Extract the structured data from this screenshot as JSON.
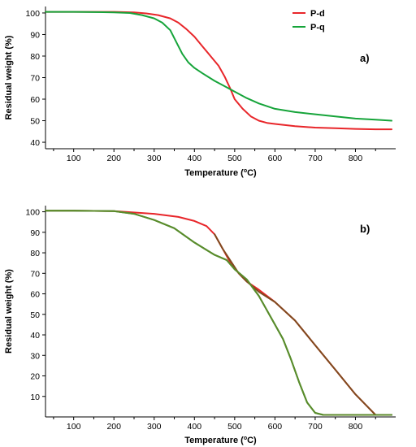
{
  "chart_data": [
    {
      "type": "line",
      "panel_label": "a)",
      "xlabel_prefix": "Temperature (",
      "xlabel_unit": "o",
      "xlabel_suffix": "C)",
      "ylabel": "Residual weight (%)",
      "xlim": [
        30,
        900
      ],
      "ylim": [
        37,
        103
      ],
      "xticks": [
        "100",
        "200",
        "300",
        "400",
        "500",
        "600",
        "700",
        "800"
      ],
      "yticks": [
        "40",
        "50",
        "60",
        "70",
        "80",
        "90",
        "100"
      ],
      "legend": {
        "placement": "top-center"
      },
      "grid": false,
      "series": [
        {
          "name": "P-d",
          "color": "#e8262a",
          "x": [
            30,
            100,
            200,
            250,
            280,
            310,
            340,
            360,
            380,
            400,
            420,
            440,
            460,
            475,
            490,
            500,
            520,
            540,
            560,
            580,
            600,
            650,
            700,
            750,
            800,
            850,
            890
          ],
          "y": [
            100.5,
            100.5,
            100.5,
            100.3,
            99.8,
            99,
            97.5,
            95.5,
            92.5,
            89,
            84.5,
            80,
            75.5,
            70.5,
            64.5,
            60,
            55.5,
            52,
            50,
            49,
            48.5,
            47.5,
            46.8,
            46.5,
            46.2,
            46,
            46
          ]
        },
        {
          "name": "P-q",
          "color": "#16a43a",
          "x": [
            30,
            100,
            200,
            240,
            270,
            300,
            320,
            340,
            355,
            370,
            385,
            400,
            420,
            450,
            480,
            500,
            530,
            560,
            600,
            650,
            700,
            750,
            800,
            850,
            890
          ],
          "y": [
            100.5,
            100.5,
            100.3,
            100,
            99,
            97.5,
            95.5,
            92,
            86.5,
            81,
            77,
            74.5,
            72,
            68.5,
            65.5,
            63.5,
            60.5,
            58,
            55.5,
            54,
            53,
            52,
            51,
            50.5,
            50
          ]
        }
      ]
    },
    {
      "type": "line",
      "panel_label": "b)",
      "xlabel_prefix": "Temperature (",
      "xlabel_unit": "o",
      "xlabel_suffix": "C)",
      "ylabel": "Residual weight (%)",
      "xlim": [
        30,
        900
      ],
      "ylim": [
        0,
        103
      ],
      "xticks": [
        "100",
        "200",
        "300",
        "400",
        "500",
        "600",
        "700",
        "800"
      ],
      "yticks": [
        "10",
        "20",
        "30",
        "40",
        "50",
        "60",
        "70",
        "80",
        "90",
        "100"
      ],
      "grid": false,
      "series": [
        {
          "color": "#e8262a",
          "x": [
            30,
            100,
            200,
            300,
            360,
            400,
            430,
            450,
            470,
            490,
            510,
            530,
            560,
            600,
            650,
            700,
            750,
            800,
            850,
            890
          ],
          "y": [
            100.5,
            100.5,
            100.3,
            99,
            97.5,
            95.5,
            93,
            89,
            82,
            75,
            70,
            66,
            62,
            56,
            47,
            35,
            23,
            11,
            1,
            1
          ]
        },
        {
          "color": "#16a43a",
          "x": [
            30,
            100,
            200,
            250,
            300,
            350,
            400,
            450,
            480,
            500,
            530,
            560,
            580,
            600,
            620,
            640,
            660,
            680,
            700,
            720,
            750,
            800,
            850,
            890
          ],
          "y": [
            100.5,
            100.5,
            100.3,
            99,
            96,
            92,
            85,
            79,
            76.5,
            72,
            67,
            59,
            52,
            45,
            38,
            28,
            17,
            7,
            2,
            1,
            1,
            1,
            1,
            1
          ]
        },
        {
          "color": "#7f4a1e",
          "x": [
            450,
            470,
            490,
            510,
            530,
            560,
            600,
            650,
            700,
            750,
            800,
            850
          ],
          "y": [
            89,
            82,
            76,
            70,
            66,
            61,
            56,
            47,
            35,
            23,
            11,
            1
          ]
        },
        {
          "color": "#5c8a2a",
          "x": [
            30,
            100,
            200,
            250,
            300,
            350,
            400,
            450,
            480,
            500,
            530,
            560,
            580,
            600,
            620,
            640,
            660,
            680,
            700,
            720,
            750,
            800,
            850,
            890
          ],
          "y": [
            100.5,
            100.5,
            100.3,
            99,
            96,
            92,
            85,
            79,
            76.5,
            72,
            67,
            59,
            52,
            45,
            38,
            28,
            17,
            7,
            2,
            1,
            1,
            1,
            1,
            1
          ]
        }
      ]
    }
  ]
}
